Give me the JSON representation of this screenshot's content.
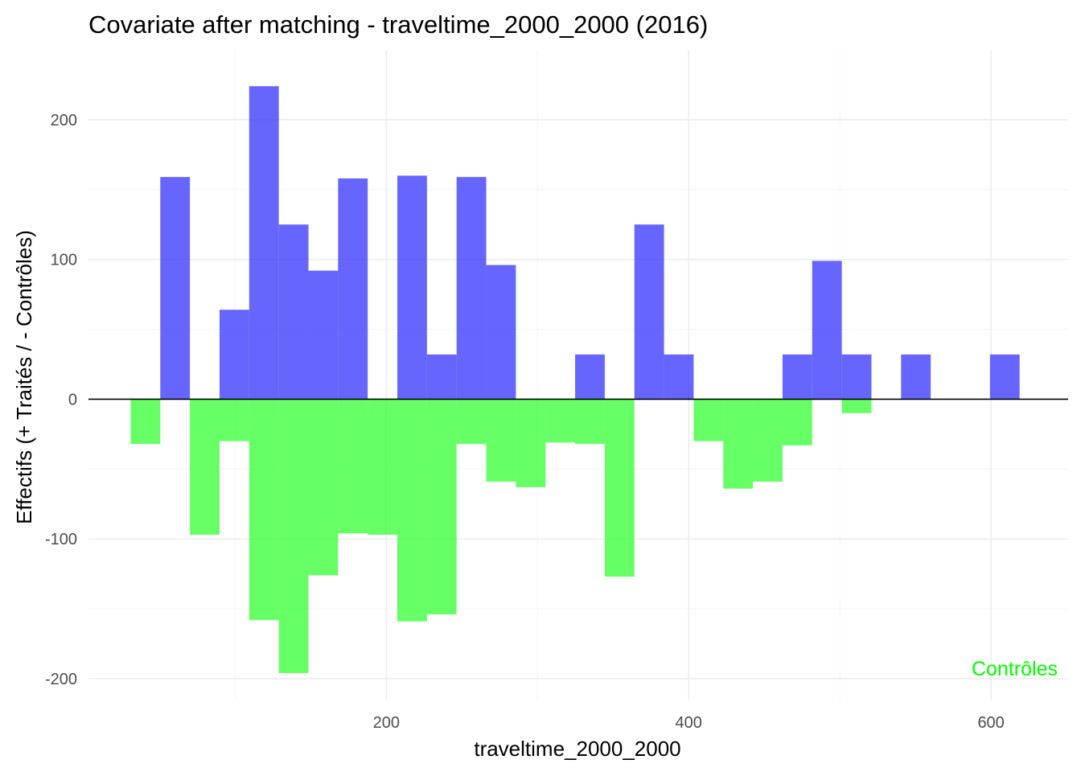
{
  "chart_data": {
    "type": "bar",
    "title": "Covariate after matching - traveltime_2000_2000 (2016)",
    "xlabel": "traveltime_2000_2000",
    "ylabel": "Effectifs (+ Traités / - Contrôles)",
    "xlim": [
      3,
      651
    ],
    "ylim": [
      -215,
      250
    ],
    "x_ticks": [
      200,
      400,
      600
    ],
    "x_tick_labels": [
      "200",
      "400",
      "600"
    ],
    "y_ticks": [
      -200,
      -100,
      0,
      100,
      200
    ],
    "y_tick_labels": [
      "-200",
      "-100",
      "0",
      "100",
      "200"
    ],
    "x_minor_ticks": [
      100,
      300,
      500
    ],
    "y_minor_ticks": [
      -150,
      -50,
      50,
      150
    ],
    "grid": true,
    "bin_width": 19.6,
    "bin_starts": [
      30.9,
      50.5,
      70.1,
      89.7,
      109.3,
      128.9,
      148.5,
      168.1,
      187.7,
      207.3,
      226.9,
      246.5,
      266.1,
      285.7,
      305.3,
      324.9,
      344.5,
      364.1,
      383.7,
      403.3,
      422.9,
      442.5,
      462.1,
      481.7,
      501.3,
      520.9,
      540.5,
      560.1,
      579.7,
      599.3
    ],
    "series": [
      {
        "name": "Traités",
        "color": "#3333ff",
        "opacity": 0.75,
        "values": [
          0,
          159,
          0,
          64,
          224,
          125,
          92,
          158,
          0,
          160,
          32,
          159,
          96,
          0,
          0,
          32,
          0,
          125,
          32,
          0,
          0,
          0,
          32,
          99,
          32,
          0,
          32,
          0,
          0,
          32
        ]
      },
      {
        "name": "Contrôles",
        "color": "#33ff33",
        "opacity": 0.75,
        "values": [
          -32,
          0,
          -97,
          -30,
          -158,
          -196,
          -126,
          -96,
          -97,
          -159,
          -154,
          -32,
          -59,
          -63,
          -31,
          -32,
          -127,
          0,
          0,
          -30,
          -64,
          -59,
          -33,
          0,
          -10,
          0,
          0,
          0,
          0,
          0
        ]
      }
    ],
    "annotations": [
      {
        "text": "Contrôles",
        "color": "#00ff00",
        "position": "bottom-right"
      }
    ]
  }
}
